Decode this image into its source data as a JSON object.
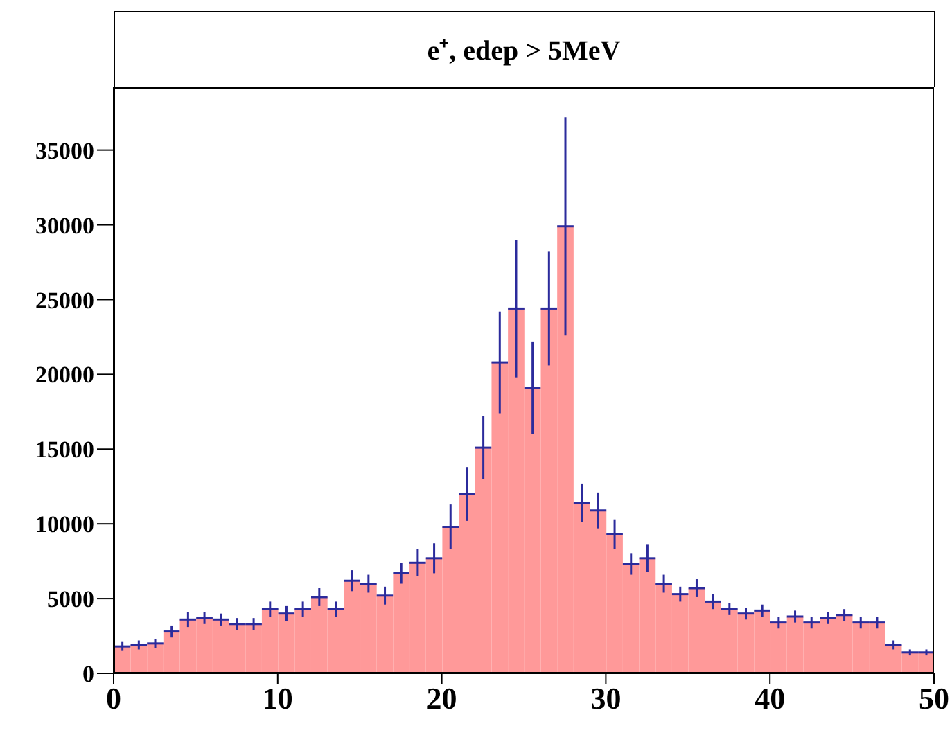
{
  "chart_data": {
    "type": "histogram",
    "title": "e⁺, edep > 5MeV",
    "bins": [
      0,
      1,
      2,
      3,
      4,
      5,
      6,
      7,
      8,
      9,
      10,
      11,
      12,
      13,
      14,
      15,
      16,
      17,
      18,
      19,
      20,
      21,
      22,
      23,
      24,
      25,
      26,
      27,
      28,
      29,
      30,
      31,
      32,
      33,
      34,
      35,
      36,
      37,
      38,
      39,
      40,
      41,
      42,
      43,
      44,
      45,
      46,
      47,
      48,
      49,
      50
    ],
    "values": [
      1800,
      1900,
      2000,
      2800,
      3600,
      3700,
      3600,
      3300,
      3300,
      4300,
      4000,
      4300,
      5100,
      4300,
      6200,
      6000,
      5200,
      6700,
      7400,
      7700,
      9800,
      12000,
      15100,
      20800,
      24400,
      19100,
      24400,
      29900,
      11400,
      10900,
      9300,
      7300,
      7700,
      6000,
      5300,
      5700,
      4800,
      4300,
      4000,
      4200,
      3400,
      3800,
      3400,
      3700,
      3900,
      3400,
      3400,
      1900,
      1400,
      1400
    ],
    "errors": [
      300,
      300,
      300,
      400,
      500,
      400,
      400,
      400,
      400,
      500,
      500,
      500,
      600,
      500,
      700,
      600,
      600,
      700,
      900,
      1000,
      1500,
      1800,
      2100,
      3400,
      4600,
      3100,
      3800,
      7300,
      1300,
      1200,
      1000,
      700,
      900,
      600,
      500,
      600,
      500,
      400,
      400,
      400,
      400,
      400,
      400,
      400,
      400,
      400,
      400,
      300,
      200,
      200
    ],
    "color": "#ff9999",
    "xlim": [
      0,
      50
    ],
    "xticks": [
      0,
      10,
      20,
      30,
      40,
      50
    ],
    "ylim": [
      0,
      39200
    ],
    "yticks": [
      0,
      5000,
      10000,
      15000,
      20000,
      25000,
      30000,
      35000
    ],
    "grid": false,
    "legend": false
  }
}
